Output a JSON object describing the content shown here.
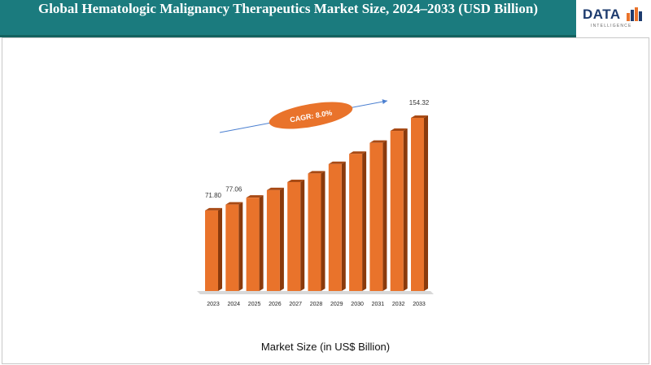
{
  "header": {
    "title": "Global Hematologic Malignancy Therapeutics Market Size, 2024–2033 (USD Billion)"
  },
  "logo": {
    "text": "DATA",
    "subtext": "INTELLIGENCE"
  },
  "colors": {
    "header_bg": "#1b7b7e",
    "bar_front": "#e9732b",
    "bar_side": "#8a3a0c",
    "cagr_fill": "#e9732b",
    "arrow": "#4a7fd0"
  },
  "chart_data": {
    "type": "bar",
    "categories": [
      "2023",
      "2024",
      "2025",
      "2026",
      "2027",
      "2028",
      "2029",
      "2030",
      "2031",
      "2032",
      "2033"
    ],
    "values": [
      71.8,
      77.06,
      83.2,
      89.9,
      97.1,
      104.8,
      113.2,
      122.3,
      132.1,
      142.7,
      154.32
    ],
    "data_labels": [
      "71.80",
      "77.06",
      "",
      "",
      "",
      "",
      "",
      "",
      "",
      "",
      "154.32"
    ],
    "xlabel": "Market Size (in US$ Billion)",
    "ylabel": "",
    "ylim": [
      0,
      165
    ],
    "grid": false,
    "annotation": "CAGR: 8.0%"
  }
}
